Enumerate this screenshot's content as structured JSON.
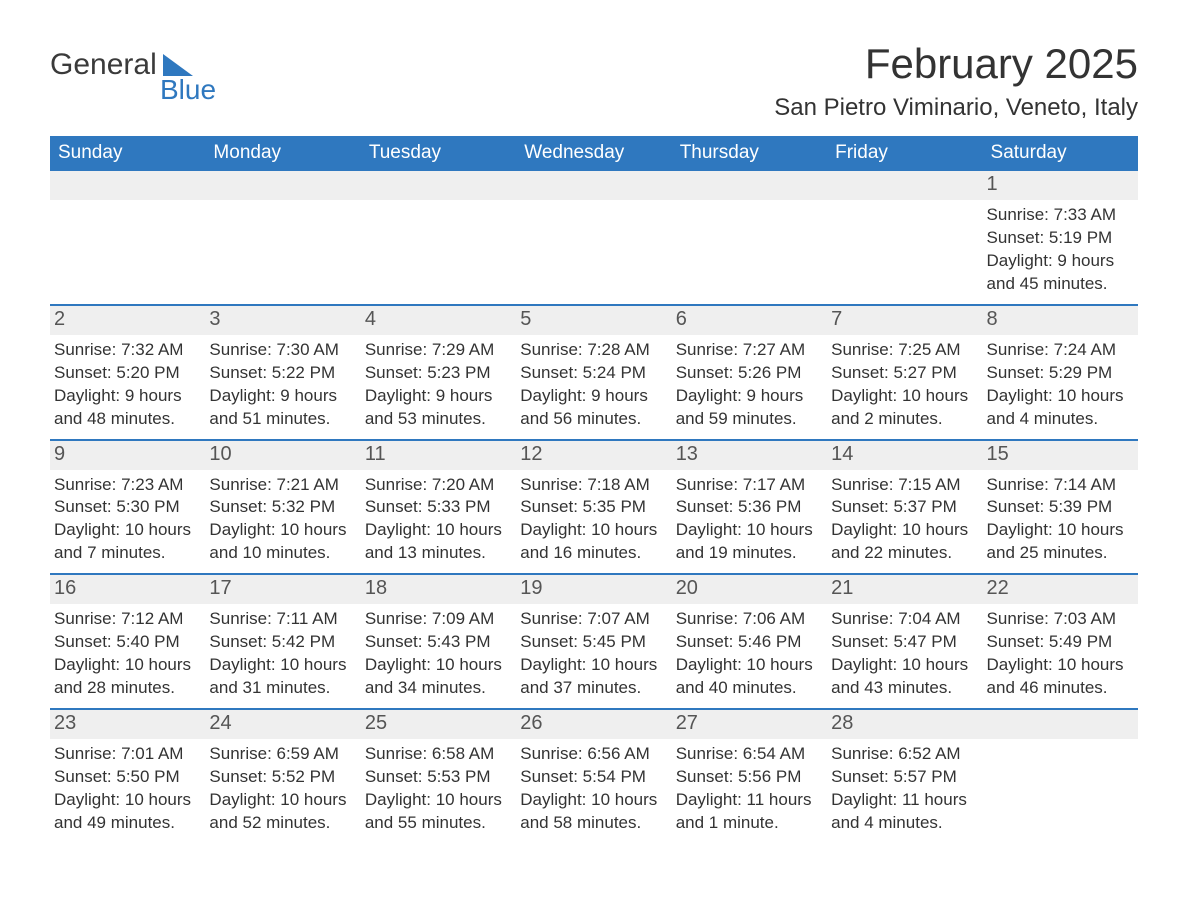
{
  "brand": {
    "word1": "General",
    "word2": "Blue"
  },
  "title": "February 2025",
  "location": "San Pietro Viminario, Veneto, Italy",
  "colors": {
    "accent": "#2f78bf",
    "header_text": "#ffffff",
    "daynum_bg": "#efefef",
    "text": "#333333",
    "background": "#ffffff"
  },
  "daysOfWeek": [
    "Sunday",
    "Monday",
    "Tuesday",
    "Wednesday",
    "Thursday",
    "Friday",
    "Saturday"
  ],
  "weeks": [
    [
      {
        "n": "",
        "lines": [
          "",
          "",
          "",
          ""
        ]
      },
      {
        "n": "",
        "lines": [
          "",
          "",
          "",
          ""
        ]
      },
      {
        "n": "",
        "lines": [
          "",
          "",
          "",
          ""
        ]
      },
      {
        "n": "",
        "lines": [
          "",
          "",
          "",
          ""
        ]
      },
      {
        "n": "",
        "lines": [
          "",
          "",
          "",
          ""
        ]
      },
      {
        "n": "",
        "lines": [
          "",
          "",
          "",
          ""
        ]
      },
      {
        "n": "1",
        "lines": [
          "Sunrise: 7:33 AM",
          "Sunset: 5:19 PM",
          "Daylight: 9 hours",
          "and 45 minutes."
        ]
      }
    ],
    [
      {
        "n": "2",
        "lines": [
          "Sunrise: 7:32 AM",
          "Sunset: 5:20 PM",
          "Daylight: 9 hours",
          "and 48 minutes."
        ]
      },
      {
        "n": "3",
        "lines": [
          "Sunrise: 7:30 AM",
          "Sunset: 5:22 PM",
          "Daylight: 9 hours",
          "and 51 minutes."
        ]
      },
      {
        "n": "4",
        "lines": [
          "Sunrise: 7:29 AM",
          "Sunset: 5:23 PM",
          "Daylight: 9 hours",
          "and 53 minutes."
        ]
      },
      {
        "n": "5",
        "lines": [
          "Sunrise: 7:28 AM",
          "Sunset: 5:24 PM",
          "Daylight: 9 hours",
          "and 56 minutes."
        ]
      },
      {
        "n": "6",
        "lines": [
          "Sunrise: 7:27 AM",
          "Sunset: 5:26 PM",
          "Daylight: 9 hours",
          "and 59 minutes."
        ]
      },
      {
        "n": "7",
        "lines": [
          "Sunrise: 7:25 AM",
          "Sunset: 5:27 PM",
          "Daylight: 10 hours",
          "and 2 minutes."
        ]
      },
      {
        "n": "8",
        "lines": [
          "Sunrise: 7:24 AM",
          "Sunset: 5:29 PM",
          "Daylight: 10 hours",
          "and 4 minutes."
        ]
      }
    ],
    [
      {
        "n": "9",
        "lines": [
          "Sunrise: 7:23 AM",
          "Sunset: 5:30 PM",
          "Daylight: 10 hours",
          "and 7 minutes."
        ]
      },
      {
        "n": "10",
        "lines": [
          "Sunrise: 7:21 AM",
          "Sunset: 5:32 PM",
          "Daylight: 10 hours",
          "and 10 minutes."
        ]
      },
      {
        "n": "11",
        "lines": [
          "Sunrise: 7:20 AM",
          "Sunset: 5:33 PM",
          "Daylight: 10 hours",
          "and 13 minutes."
        ]
      },
      {
        "n": "12",
        "lines": [
          "Sunrise: 7:18 AM",
          "Sunset: 5:35 PM",
          "Daylight: 10 hours",
          "and 16 minutes."
        ]
      },
      {
        "n": "13",
        "lines": [
          "Sunrise: 7:17 AM",
          "Sunset: 5:36 PM",
          "Daylight: 10 hours",
          "and 19 minutes."
        ]
      },
      {
        "n": "14",
        "lines": [
          "Sunrise: 7:15 AM",
          "Sunset: 5:37 PM",
          "Daylight: 10 hours",
          "and 22 minutes."
        ]
      },
      {
        "n": "15",
        "lines": [
          "Sunrise: 7:14 AM",
          "Sunset: 5:39 PM",
          "Daylight: 10 hours",
          "and 25 minutes."
        ]
      }
    ],
    [
      {
        "n": "16",
        "lines": [
          "Sunrise: 7:12 AM",
          "Sunset: 5:40 PM",
          "Daylight: 10 hours",
          "and 28 minutes."
        ]
      },
      {
        "n": "17",
        "lines": [
          "Sunrise: 7:11 AM",
          "Sunset: 5:42 PM",
          "Daylight: 10 hours",
          "and 31 minutes."
        ]
      },
      {
        "n": "18",
        "lines": [
          "Sunrise: 7:09 AM",
          "Sunset: 5:43 PM",
          "Daylight: 10 hours",
          "and 34 minutes."
        ]
      },
      {
        "n": "19",
        "lines": [
          "Sunrise: 7:07 AM",
          "Sunset: 5:45 PM",
          "Daylight: 10 hours",
          "and 37 minutes."
        ]
      },
      {
        "n": "20",
        "lines": [
          "Sunrise: 7:06 AM",
          "Sunset: 5:46 PM",
          "Daylight: 10 hours",
          "and 40 minutes."
        ]
      },
      {
        "n": "21",
        "lines": [
          "Sunrise: 7:04 AM",
          "Sunset: 5:47 PM",
          "Daylight: 10 hours",
          "and 43 minutes."
        ]
      },
      {
        "n": "22",
        "lines": [
          "Sunrise: 7:03 AM",
          "Sunset: 5:49 PM",
          "Daylight: 10 hours",
          "and 46 minutes."
        ]
      }
    ],
    [
      {
        "n": "23",
        "lines": [
          "Sunrise: 7:01 AM",
          "Sunset: 5:50 PM",
          "Daylight: 10 hours",
          "and 49 minutes."
        ]
      },
      {
        "n": "24",
        "lines": [
          "Sunrise: 6:59 AM",
          "Sunset: 5:52 PM",
          "Daylight: 10 hours",
          "and 52 minutes."
        ]
      },
      {
        "n": "25",
        "lines": [
          "Sunrise: 6:58 AM",
          "Sunset: 5:53 PM",
          "Daylight: 10 hours",
          "and 55 minutes."
        ]
      },
      {
        "n": "26",
        "lines": [
          "Sunrise: 6:56 AM",
          "Sunset: 5:54 PM",
          "Daylight: 10 hours",
          "and 58 minutes."
        ]
      },
      {
        "n": "27",
        "lines": [
          "Sunrise: 6:54 AM",
          "Sunset: 5:56 PM",
          "Daylight: 11 hours",
          "and 1 minute."
        ]
      },
      {
        "n": "28",
        "lines": [
          "Sunrise: 6:52 AM",
          "Sunset: 5:57 PM",
          "Daylight: 11 hours",
          "and 4 minutes."
        ]
      },
      {
        "n": "",
        "lines": [
          "",
          "",
          "",
          ""
        ]
      }
    ]
  ]
}
